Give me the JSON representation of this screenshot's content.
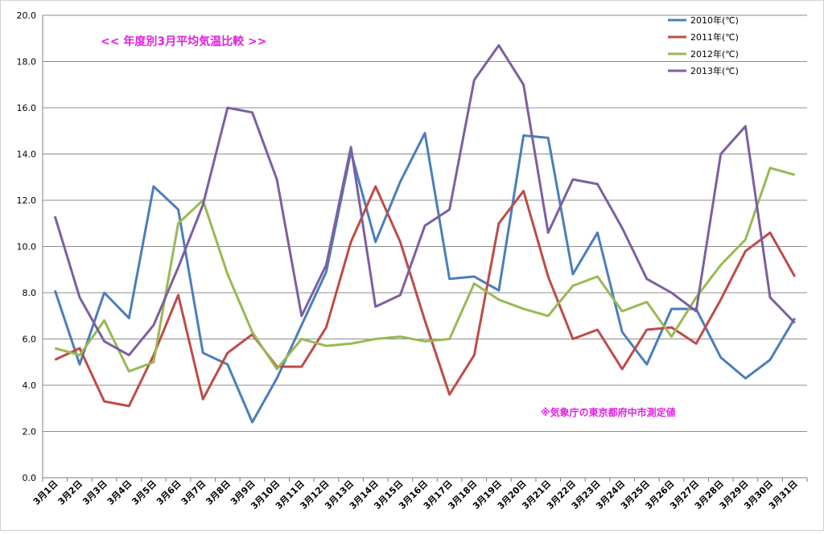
{
  "chart_data": {
    "type": "line",
    "title": "<<  年度別3月平均気温比較  >>",
    "note": "※気象庁の東京都府中市測定値",
    "xlabel": "",
    "ylabel": "",
    "ylim": [
      0,
      20
    ],
    "ytick_labels": [
      "0.0",
      "2.0",
      "4.0",
      "6.0",
      "8.0",
      "10.0",
      "12.0",
      "14.0",
      "16.0",
      "18.0",
      "20.0"
    ],
    "grid": true,
    "legend_position": "top-right",
    "categories": [
      "3月1日",
      "3月2日",
      "3月3日",
      "3月4日",
      "3月5日",
      "3月6日",
      "3月7日",
      "3月8日",
      "3月9日",
      "3月10日",
      "3月11日",
      "3月12日",
      "3月13日",
      "3月14日",
      "3月15日",
      "3月16日",
      "3月17日",
      "3月18日",
      "3月19日",
      "3月20日",
      "3月21日",
      "3月22日",
      "3月23日",
      "3月24日",
      "3月25日",
      "3月26日",
      "3月27日",
      "3月28日",
      "3月29日",
      "3月30日",
      "3月31日"
    ],
    "series": [
      {
        "name": "2010年(℃)",
        "color": "#4a7ebb",
        "values": [
          8.1,
          4.9,
          8.0,
          6.9,
          12.6,
          11.6,
          5.4,
          4.9,
          2.4,
          4.3,
          6.6,
          8.9,
          14.1,
          10.2,
          12.8,
          14.9,
          8.6,
          8.7,
          8.1,
          14.8,
          14.7,
          8.8,
          10.6,
          6.3,
          4.9,
          7.3,
          7.3,
          5.2,
          4.3,
          5.1,
          6.9
        ]
      },
      {
        "name": "2011年(℃)",
        "color": "#be4b48",
        "values": [
          5.1,
          5.6,
          3.3,
          3.1,
          5.3,
          7.9,
          3.4,
          5.4,
          6.2,
          4.8,
          4.8,
          6.5,
          10.2,
          12.6,
          10.2,
          6.8,
          3.6,
          5.3,
          11.0,
          12.4,
          8.7,
          6.0,
          6.4,
          4.7,
          6.4,
          6.5,
          5.8,
          7.7,
          9.8,
          10.6,
          8.7
        ]
      },
      {
        "name": "2012年(℃)",
        "color": "#98b954",
        "values": [
          5.6,
          5.3,
          6.8,
          4.6,
          5.0,
          11.0,
          12.0,
          8.8,
          6.3,
          4.7,
          6.0,
          5.7,
          5.8,
          6.0,
          6.1,
          5.9,
          6.0,
          8.4,
          7.7,
          7.3,
          7.0,
          8.3,
          8.7,
          7.2,
          7.6,
          6.1,
          7.8,
          9.2,
          10.3,
          13.4,
          13.1
        ]
      },
      {
        "name": "2013年(℃)",
        "color": "#7d5fa0",
        "values": [
          11.3,
          7.8,
          5.9,
          5.3,
          6.6,
          9.1,
          11.8,
          16.0,
          15.8,
          12.9,
          7.0,
          9.2,
          14.3,
          7.4,
          7.9,
          10.9,
          11.6,
          17.2,
          18.7,
          17.0,
          10.6,
          12.9,
          12.7,
          10.8,
          8.6,
          8.0,
          7.2,
          14.0,
          15.2,
          7.8,
          6.7
        ]
      }
    ]
  }
}
